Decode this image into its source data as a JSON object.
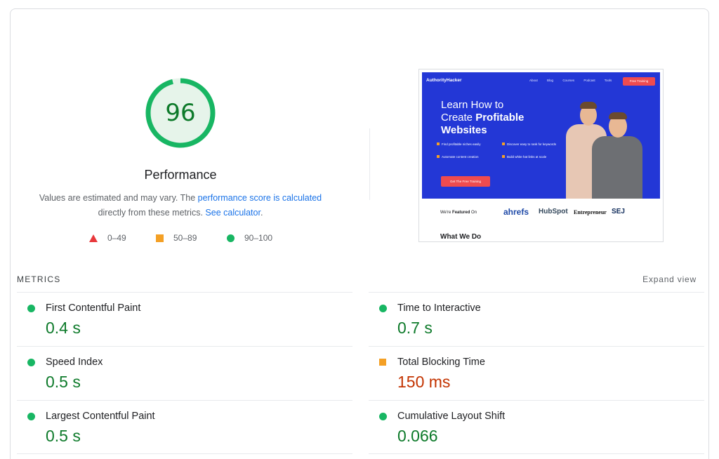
{
  "gauge": {
    "score": "96",
    "score_fraction": 0.96,
    "title": "Performance",
    "desc_prefix": "Values are estimated and may vary. The ",
    "desc_link1": "performance score is calculated",
    "desc_middle": "directly from these metrics. ",
    "desc_link2": "See calculator",
    "desc_suffix": ".",
    "color": "#18b663"
  },
  "legend": [
    {
      "range": "0–49",
      "shape": "triangle-icon",
      "color": "#e8383b"
    },
    {
      "range": "50–89",
      "shape": "square-icon",
      "color": "#f4a025"
    },
    {
      "range": "90–100",
      "shape": "circle-icon",
      "color": "#18b663"
    }
  ],
  "thumbnail": {
    "brand": "AuthorityHacker",
    "nav": [
      "About",
      "Blog",
      "Courses",
      "Podcast",
      "Tools"
    ],
    "nav_cta": "Free Training",
    "headline_line1": "Learn How to",
    "headline_line2_prefix": "Create ",
    "headline_line2_bold": "Profitable",
    "headline_line3": "Websites",
    "bullets": [
      "Find profitable niches easily",
      "Discover easy to rank for keywords",
      "Automate content creation",
      "Build white hat links at scale"
    ],
    "cta": "Get The Free Training",
    "featured_prefix": "We're ",
    "featured_bold": "Featured",
    "featured_suffix": " On",
    "logos": [
      "ahrefs",
      "HubSpot",
      "Entrepreneur",
      "SEJ"
    ],
    "what": "What We Do"
  },
  "metrics": {
    "header": "METRICS",
    "expand": "Expand view",
    "items": [
      {
        "name": "First Contentful Paint",
        "value": "0.4 s",
        "status": "good"
      },
      {
        "name": "Time to Interactive",
        "value": "0.7 s",
        "status": "good"
      },
      {
        "name": "Speed Index",
        "value": "0.5 s",
        "status": "good"
      },
      {
        "name": "Total Blocking Time",
        "value": "150 ms",
        "status": "average"
      },
      {
        "name": "Largest Contentful Paint",
        "value": "0.5 s",
        "status": "good"
      },
      {
        "name": "Cumulative Layout Shift",
        "value": "0.066",
        "status": "good"
      }
    ]
  }
}
